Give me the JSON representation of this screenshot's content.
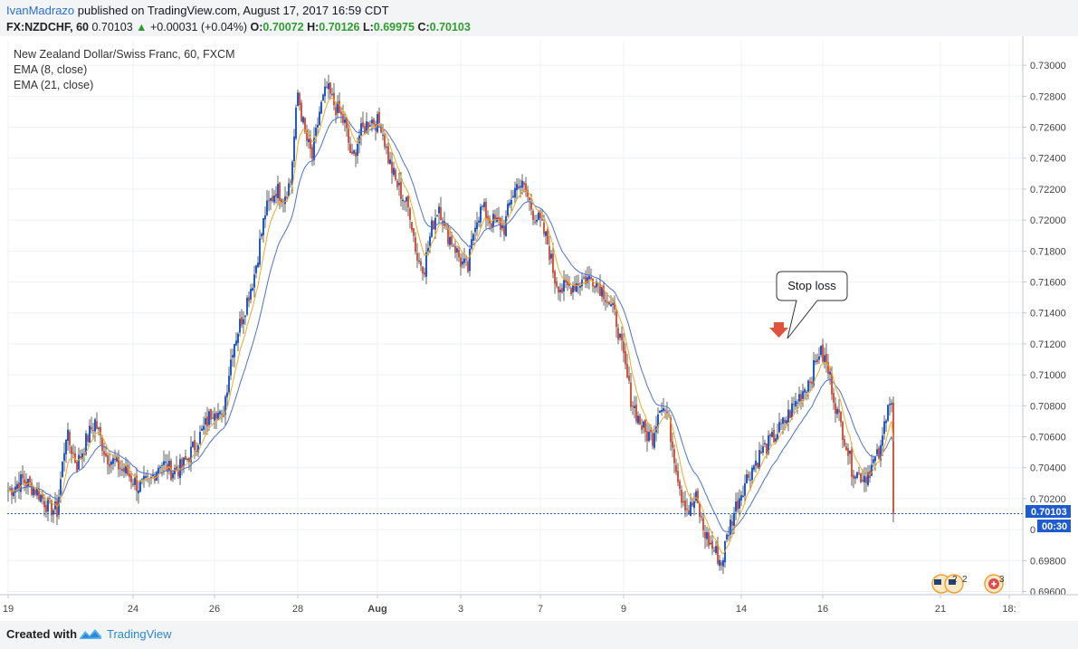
{
  "header": {
    "author": "IvanMadrazo",
    "published": "published on TradingView.com, August 17, 2017 16:59 CDT",
    "symbol": "FX:NZDCHF, 60",
    "last": "0.70103",
    "arrow": "▲",
    "change": "+0.00031 (+0.04%)",
    "o_label": "O:",
    "o": "0.70072",
    "h_label": "H:",
    "h": "0.70126",
    "l_label": "L:",
    "l": "0.69975",
    "c_label": "C:",
    "c": "0.70103"
  },
  "legend": {
    "title": "New Zealand Dollar/Swiss Franc, 60, FXCM",
    "ema8": "EMA (8, close)",
    "ema21": "EMA (21, close)"
  },
  "annotation": {
    "text": "Stop loss"
  },
  "price_badge": "0.70103",
  "countdown_badge": "00:30",
  "events": {
    "flags_count": "2",
    "flags_count2": "2",
    "plus_count": "3"
  },
  "footer": {
    "created": "Created with",
    "brand": "TradingView"
  },
  "colors": {
    "up": "#1e5bd0",
    "down": "#d8553f",
    "ema8": "#f5a623",
    "ema21": "#4e6fd6",
    "last_line": "#1e5bd0",
    "annotation_arrow": "#e0523c"
  },
  "chart_data": {
    "type": "candlestick",
    "title": "New Zealand Dollar/Swiss Franc, 60, FXCM",
    "ylim": [
      0.6953,
      0.7302
    ],
    "yticks": [
      0.73,
      0.728,
      0.726,
      0.724,
      0.722,
      0.72,
      0.718,
      0.716,
      0.714,
      0.712,
      0.71,
      0.708,
      0.706,
      0.704,
      0.702,
      0.698,
      0.696
    ],
    "ytick_labels": [
      "0.73000",
      "0.72800",
      "0.72600",
      "0.72400",
      "0.72200",
      "0.72000",
      "0.71800",
      "0.71600",
      "0.71400",
      "0.71200",
      "0.71000",
      "0.70800",
      "0.70600",
      "0.70400",
      "0.70200",
      "0.69800",
      "0.69600"
    ],
    "y_extra_tick": {
      "value": 0.7,
      "label": "0"
    },
    "xticks": [
      {
        "label": "19",
        "bar": 0
      },
      {
        "label": "24",
        "bar": 69
      },
      {
        "label": "26",
        "bar": 114
      },
      {
        "label": "28",
        "bar": 160
      },
      {
        "label": "Aug",
        "bar": 204
      },
      {
        "label": "3",
        "bar": 250
      },
      {
        "label": "7",
        "bar": 294
      },
      {
        "label": "9",
        "bar": 340
      },
      {
        "label": "14",
        "bar": 405
      },
      {
        "label": "16",
        "bar": 450
      },
      {
        "label": "21",
        "bar": 515
      },
      {
        "label": "18:",
        "bar": 553
      }
    ],
    "total_bars": 490,
    "anchors": [
      [
        0,
        0.7025
      ],
      [
        8,
        0.7032
      ],
      [
        16,
        0.7025
      ],
      [
        22,
        0.7015
      ],
      [
        27,
        0.7012
      ],
      [
        32,
        0.7062
      ],
      [
        38,
        0.7042
      ],
      [
        44,
        0.706
      ],
      [
        48,
        0.707
      ],
      [
        54,
        0.7048
      ],
      [
        60,
        0.7042
      ],
      [
        66,
        0.7036
      ],
      [
        72,
        0.7028
      ],
      [
        78,
        0.703
      ],
      [
        84,
        0.7044
      ],
      [
        90,
        0.7038
      ],
      [
        96,
        0.704
      ],
      [
        102,
        0.7052
      ],
      [
        108,
        0.7065
      ],
      [
        114,
        0.708
      ],
      [
        118,
        0.707
      ],
      [
        124,
        0.7118
      ],
      [
        130,
        0.714
      ],
      [
        136,
        0.7165
      ],
      [
        142,
        0.7205
      ],
      [
        148,
        0.722
      ],
      [
        152,
        0.7215
      ],
      [
        156,
        0.7225
      ],
      [
        160,
        0.7282
      ],
      [
        164,
        0.7255
      ],
      [
        168,
        0.724
      ],
      [
        172,
        0.727
      ],
      [
        176,
        0.7285
      ],
      [
        180,
        0.7275
      ],
      [
        186,
        0.7262
      ],
      [
        190,
        0.7238
      ],
      [
        194,
        0.7255
      ],
      [
        200,
        0.7265
      ],
      [
        206,
        0.7262
      ],
      [
        210,
        0.724
      ],
      [
        214,
        0.7225
      ],
      [
        218,
        0.7215
      ],
      [
        222,
        0.7205
      ],
      [
        226,
        0.7175
      ],
      [
        230,
        0.717
      ],
      [
        234,
        0.7195
      ],
      [
        238,
        0.721
      ],
      [
        242,
        0.7192
      ],
      [
        246,
        0.7185
      ],
      [
        250,
        0.7173
      ],
      [
        254,
        0.7168
      ],
      [
        258,
        0.72
      ],
      [
        262,
        0.7208
      ],
      [
        266,
        0.72
      ],
      [
        270,
        0.7198
      ],
      [
        274,
        0.7195
      ],
      [
        278,
        0.7215
      ],
      [
        282,
        0.7225
      ],
      [
        286,
        0.7218
      ],
      [
        290,
        0.7205
      ],
      [
        294,
        0.7198
      ],
      [
        298,
        0.7185
      ],
      [
        302,
        0.7162
      ],
      [
        306,
        0.7155
      ],
      [
        312,
        0.7158
      ],
      [
        318,
        0.7162
      ],
      [
        324,
        0.7162
      ],
      [
        330,
        0.7152
      ],
      [
        336,
        0.7135
      ],
      [
        340,
        0.711
      ],
      [
        344,
        0.7085
      ],
      [
        348,
        0.7072
      ],
      [
        352,
        0.7062
      ],
      [
        356,
        0.706
      ],
      [
        360,
        0.7082
      ],
      [
        364,
        0.7075
      ],
      [
        368,
        0.7048
      ],
      [
        372,
        0.7022
      ],
      [
        376,
        0.7012
      ],
      [
        380,
        0.702
      ],
      [
        384,
        0.7
      ],
      [
        388,
        0.699
      ],
      [
        391,
        0.6985
      ],
      [
        394,
        0.6978
      ],
      [
        398,
        0.7
      ],
      [
        402,
        0.7015
      ],
      [
        406,
        0.7028
      ],
      [
        410,
        0.7038
      ],
      [
        416,
        0.705
      ],
      [
        422,
        0.7058
      ],
      [
        428,
        0.7068
      ],
      [
        434,
        0.708
      ],
      [
        440,
        0.7092
      ],
      [
        444,
        0.71
      ],
      [
        448,
        0.7115
      ],
      [
        451,
        0.711
      ],
      [
        454,
        0.7098
      ],
      [
        458,
        0.7075
      ],
      [
        462,
        0.706
      ],
      [
        466,
        0.704
      ],
      [
        470,
        0.7035
      ],
      [
        474,
        0.7035
      ],
      [
        478,
        0.7043
      ],
      [
        482,
        0.705
      ],
      [
        486,
        0.7085
      ],
      [
        489,
        0.708
      ]
    ],
    "series": [
      {
        "name": "EMA (8, close)",
        "type": "line"
      },
      {
        "name": "EMA (21, close)",
        "type": "line"
      }
    ],
    "last_price": 0.70103,
    "annotation": {
      "text": "Stop loss",
      "price": 0.7115
    }
  }
}
